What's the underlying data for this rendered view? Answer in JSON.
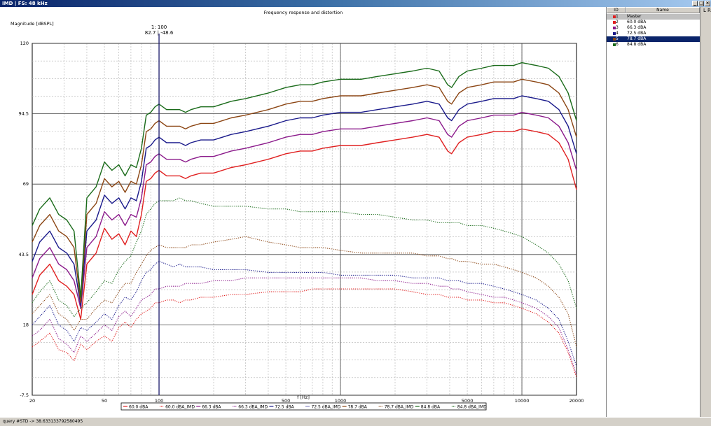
{
  "window": {
    "title": "IMD | FS: 48 kHz",
    "buttons": [
      "_",
      "□",
      "×"
    ]
  },
  "chart_data": {
    "type": "line",
    "title": "Frequency response and distortion",
    "ylabel": "Magnitude [dBSPL]",
    "xlabel": "f [Hz]",
    "xscale": "log",
    "xlim": [
      20,
      20000
    ],
    "ylim": [
      -7.5,
      120
    ],
    "xticks": [
      20,
      50,
      100,
      500,
      1000,
      5000,
      10000,
      20000
    ],
    "xtick_labels": [
      "20",
      "50",
      "100",
      "500",
      "1000",
      "5000",
      "10000",
      "20000"
    ],
    "yticks": [
      -7.5,
      18,
      43.5,
      69,
      94.5,
      120
    ],
    "ytick_labels": [
      "-7.5",
      "18",
      "43.5",
      "69",
      "94.5",
      "120"
    ],
    "cursor": {
      "x": 100,
      "label_top": "1: 100",
      "label_bottom": "82.7 | -48.6"
    },
    "x": [
      20,
      22,
      25,
      28,
      31,
      34,
      37,
      40,
      45,
      50,
      55,
      60,
      65,
      70,
      75,
      80,
      85,
      90,
      95,
      100,
      110,
      120,
      130,
      140,
      150,
      170,
      200,
      250,
      300,
      400,
      500,
      600,
      700,
      800,
      1000,
      1300,
      1600,
      2000,
      2500,
      3000,
      3500,
      3900,
      4100,
      4500,
      5000,
      6000,
      7000,
      8000,
      9000,
      10000,
      12000,
      14000,
      16000,
      18000,
      20000
    ],
    "legend_position": "bottom-center",
    "series": [
      {
        "name": "60.0 dBA",
        "color": "#e02020",
        "dash": false,
        "values": [
          29,
          36,
          40,
          34,
          32,
          29,
          20,
          40,
          44,
          53,
          49,
          51,
          47,
          52,
          50,
          58,
          70,
          71,
          73,
          74,
          72,
          72,
          72,
          71,
          72,
          73,
          73,
          75,
          76,
          78,
          80,
          81,
          81,
          82,
          83,
          83,
          84,
          85,
          86,
          87,
          86,
          81,
          80,
          84,
          86,
          87,
          88,
          88,
          88,
          89,
          88,
          87,
          84,
          78,
          67
        ]
      },
      {
        "name": "60.0 dBA_IMD",
        "color": "#e02020",
        "dash": true,
        "values": [
          10,
          12,
          15,
          9,
          8,
          5,
          11,
          9,
          12,
          14,
          12,
          17,
          19,
          17,
          20,
          22,
          23,
          24,
          26,
          26,
          27,
          27,
          26,
          27,
          27,
          28,
          28,
          29,
          29,
          30,
          30,
          30,
          31,
          31,
          31,
          31,
          31,
          31,
          30,
          29,
          29,
          28,
          28,
          28,
          27,
          27,
          26,
          26,
          25,
          24,
          22,
          19,
          15,
          8,
          -1
        ]
      },
      {
        "name": "66.3 dBA",
        "color": "#8b1a8b",
        "dash": false,
        "values": [
          35,
          42,
          46,
          40,
          38,
          34,
          24,
          46,
          50,
          59,
          56,
          58,
          54,
          58,
          57,
          64,
          76,
          77,
          79,
          80,
          78,
          78,
          78,
          77,
          78,
          79,
          79,
          81,
          82,
          84,
          86,
          87,
          87,
          88,
          89,
          89,
          90,
          91,
          92,
          93,
          92,
          87,
          86,
          90,
          92,
          93,
          94,
          94,
          94,
          95,
          94,
          93,
          90,
          84,
          74
        ]
      },
      {
        "name": "66.3 dBA_IMD",
        "color": "#8b1a8b",
        "dash": true,
        "values": [
          14,
          16,
          20,
          13,
          11,
          8,
          14,
          12,
          15,
          18,
          16,
          21,
          23,
          21,
          24,
          27,
          28,
          29,
          31,
          31,
          32,
          32,
          32,
          33,
          33,
          33,
          34,
          34,
          35,
          35,
          35,
          35,
          35,
          35,
          35,
          35,
          34,
          34,
          33,
          33,
          32,
          32,
          31,
          31,
          30,
          29,
          28,
          28,
          27,
          26,
          24,
          21,
          17,
          9,
          0
        ]
      },
      {
        "name": "72.5 dBA",
        "color": "#1a1a8b",
        "dash": false,
        "values": [
          41,
          48,
          52,
          46,
          44,
          40,
          25,
          52,
          56,
          65,
          62,
          64,
          60,
          64,
          63,
          70,
          82,
          83,
          85,
          86,
          84,
          84,
          84,
          83,
          84,
          85,
          85,
          87,
          88,
          90,
          92,
          93,
          93,
          94,
          95,
          95,
          96,
          97,
          98,
          99,
          98,
          93,
          92,
          96,
          98,
          99,
          100,
          100,
          100,
          101,
          100,
          99,
          96,
          90,
          80
        ]
      },
      {
        "name": "72.5 dBA_IMD",
        "color": "#1a1a8b",
        "dash": true,
        "values": [
          18,
          21,
          25,
          18,
          16,
          12,
          17,
          16,
          19,
          22,
          20,
          25,
          28,
          27,
          30,
          34,
          37,
          38,
          40,
          41,
          40,
          39,
          40,
          39,
          39,
          39,
          38,
          38,
          38,
          37,
          37,
          37,
          37,
          37,
          36,
          36,
          36,
          36,
          35,
          35,
          35,
          34,
          34,
          34,
          33,
          33,
          32,
          31,
          30,
          29,
          27,
          24,
          20,
          12,
          3
        ]
      },
      {
        "name": "78.7 dBA",
        "color": "#8b4513",
        "dash": false,
        "values": [
          48,
          54,
          58,
          52,
          50,
          46,
          26,
          58,
          62,
          71,
          68,
          70,
          66,
          70,
          69,
          76,
          88,
          89,
          91,
          92,
          90,
          90,
          90,
          89,
          90,
          91,
          91,
          93,
          94,
          96,
          98,
          99,
          99,
          100,
          101,
          101,
          102,
          103,
          104,
          105,
          104,
          99,
          98,
          102,
          104,
          105,
          106,
          106,
          106,
          107,
          106,
          105,
          102,
          96,
          86
        ]
      },
      {
        "name": "78.7 dBA_IMD",
        "color": "#8b4513",
        "dash": true,
        "values": [
          22,
          25,
          29,
          22,
          20,
          16,
          20,
          20,
          24,
          27,
          26,
          30,
          33,
          33,
          37,
          40,
          43,
          45,
          46,
          47,
          46,
          46,
          46,
          46,
          47,
          47,
          48,
          49,
          50,
          48,
          47,
          46,
          46,
          46,
          45,
          44,
          44,
          44,
          44,
          43,
          43,
          42,
          42,
          41,
          41,
          40,
          40,
          39,
          38,
          37,
          35,
          32,
          28,
          22,
          10
        ]
      },
      {
        "name": "84.8 dBA",
        "color": "#1a6b1a",
        "dash": false,
        "values": [
          54,
          60,
          64,
          58,
          56,
          52,
          28,
          64,
          68,
          77,
          74,
          76,
          72,
          76,
          75,
          82,
          94,
          95,
          97,
          98,
          96,
          96,
          96,
          95,
          96,
          97,
          97,
          99,
          100,
          102,
          104,
          105,
          105,
          106,
          107,
          107,
          108,
          109,
          110,
          111,
          110,
          105,
          104,
          108,
          110,
          111,
          112,
          112,
          112,
          113,
          112,
          111,
          108,
          102,
          92
        ]
      },
      {
        "name": "84.8 dBA_IMD",
        "color": "#1a6b1a",
        "dash": true,
        "values": [
          26,
          30,
          34,
          27,
          25,
          21,
          24,
          26,
          30,
          34,
          33,
          38,
          41,
          43,
          48,
          52,
          58,
          60,
          62,
          63,
          63,
          63,
          64,
          63,
          63,
          62,
          61,
          61,
          61,
          60,
          60,
          59,
          59,
          59,
          59,
          58,
          58,
          57,
          56,
          56,
          55,
          55,
          55,
          55,
          54,
          54,
          53,
          52,
          51,
          50,
          47,
          44,
          40,
          34,
          24
        ]
      }
    ]
  },
  "side_panel": {
    "columns": [
      "ID",
      "Name"
    ],
    "rows": [
      {
        "id": "1",
        "name": "Master",
        "color": "#e02020",
        "state": "gray"
      },
      {
        "id": "2",
        "name": "60.0 dBA",
        "color": "#e02020",
        "state": ""
      },
      {
        "id": "3",
        "name": "66.3 dBA",
        "color": "#8b1a8b",
        "state": ""
      },
      {
        "id": "4",
        "name": "72.5 dBA",
        "color": "#1a1a8b",
        "state": ""
      },
      {
        "id": "5",
        "name": "78.7 dBA",
        "color": "#8b4513",
        "state": "blue"
      },
      {
        "id": "6",
        "name": "84.8 dBA",
        "color": "#1a6b1a",
        "state": ""
      }
    ]
  },
  "lr_panel": {
    "l": "L",
    "r": "R"
  },
  "status": {
    "text": "query #STD -> 38.633133792580495"
  }
}
